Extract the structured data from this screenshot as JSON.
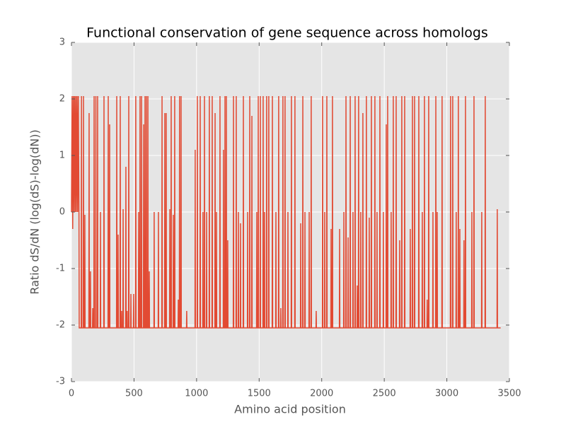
{
  "chart_data": {
    "type": "line",
    "title": "Functional conservation of gene sequence across homologs",
    "xlabel": "Amino acid position",
    "ylabel": "Ratio dS/dN (log(dS)-log(dN))",
    "xlim": [
      0,
      3500
    ],
    "xticks": [
      0,
      500,
      1000,
      1500,
      2000,
      2500,
      3000,
      3500
    ],
    "ylim": [
      -3,
      3
    ],
    "yticks": [
      -3,
      -2,
      -1,
      0,
      1,
      2,
      3
    ],
    "grid": true,
    "x": [
      0,
      5,
      10,
      15,
      20,
      25,
      30,
      35,
      40,
      45,
      50,
      55,
      60,
      62,
      78,
      80,
      82,
      94,
      96,
      98,
      105,
      107,
      109,
      139,
      141,
      143,
      150,
      152,
      154,
      168,
      170,
      172,
      179,
      181,
      183,
      193,
      195,
      197,
      207,
      209,
      211,
      230,
      232,
      234,
      258,
      260,
      262,
      292,
      294,
      296,
      303,
      305,
      307,
      360,
      362,
      364,
      371,
      373,
      375,
      388,
      390,
      392,
      399,
      401,
      403,
      411,
      413,
      415,
      433,
      435,
      437,
      443,
      445,
      447,
      456,
      458,
      460,
      473,
      475,
      477,
      495,
      497,
      499,
      512,
      514,
      516,
      535,
      537,
      539,
      546,
      548,
      550,
      558,
      560,
      562,
      575,
      577,
      579,
      586,
      588,
      590,
      597,
      599,
      601,
      609,
      611,
      613,
      620,
      622,
      624,
      659,
      661,
      663,
      693,
      695,
      697,
      722,
      724,
      726,
      744,
      746,
      748,
      755,
      757,
      759,
      784,
      786,
      788,
      795,
      797,
      799,
      812,
      814,
      816,
      823,
      825,
      827,
      852,
      854,
      856,
      862,
      864,
      866,
      874,
      876,
      878,
      919,
      921,
      923,
      987,
      989,
      991,
      1004,
      1006,
      1008,
      1027,
      1029,
      1031,
      1049,
      1051,
      1053,
      1061,
      1063,
      1065,
      1078,
      1080,
      1082,
      1100,
      1102,
      1104,
      1123,
      1125,
      1127,
      1146,
      1148,
      1150,
      1157,
      1159,
      1161,
      1185,
      1187,
      1189,
      1213,
      1215,
      1217,
      1225,
      1227,
      1229,
      1236,
      1238,
      1240,
      1247,
      1249,
      1251,
      1293,
      1295,
      1297,
      1315,
      1317,
      1319,
      1332,
      1334,
      1336,
      1349,
      1351,
      1353,
      1372,
      1374,
      1376,
      1406,
      1408,
      1410,
      1423,
      1425,
      1427,
      1440,
      1442,
      1444,
      1479,
      1481,
      1483,
      1491,
      1493,
      1495,
      1507,
      1509,
      1511,
      1530,
      1532,
      1534,
      1541,
      1543,
      1545,
      1558,
      1560,
      1562,
      1575,
      1577,
      1579,
      1604,
      1606,
      1608,
      1632,
      1634,
      1636,
      1654,
      1656,
      1658,
      1671,
      1673,
      1675,
      1688,
      1690,
      1692,
      1705,
      1707,
      1709,
      1728,
      1730,
      1732,
      1756,
      1758,
      1760,
      1784,
      1786,
      1788,
      1830,
      1832,
      1834,
      1847,
      1849,
      1851,
      1864,
      1866,
      1868,
      1898,
      1900,
      1902,
      1914,
      1916,
      1918,
      1954,
      1956,
      1958,
      2005,
      2007,
      2009,
      2022,
      2024,
      2026,
      2039,
      2041,
      2043,
      2073,
      2075,
      2077,
      2084,
      2086,
      2088,
      2141,
      2143,
      2145,
      2175,
      2177,
      2179,
      2192,
      2194,
      2196,
      2209,
      2211,
      2213,
      2226,
      2228,
      2230,
      2248,
      2250,
      2252,
      2265,
      2267,
      2269,
      2282,
      2284,
      2286,
      2293,
      2295,
      2297,
      2310,
      2312,
      2314,
      2327,
      2329,
      2331,
      2355,
      2357,
      2359,
      2378,
      2380,
      2382,
      2395,
      2397,
      2399,
      2423,
      2425,
      2427,
      2440,
      2442,
      2444,
      2463,
      2465,
      2467,
      2491,
      2493,
      2495,
      2514,
      2516,
      2518,
      2525,
      2527,
      2529,
      2553,
      2555,
      2557,
      2570,
      2572,
      2574,
      2593,
      2595,
      2597,
      2621,
      2623,
      2625,
      2638,
      2640,
      2642,
      2661,
      2663,
      2665,
      2706,
      2708,
      2710,
      2723,
      2725,
      2727,
      2740,
      2742,
      2744,
      2774,
      2776,
      2778,
      2802,
      2804,
      2806,
      2819,
      2821,
      2823,
      2841,
      2843,
      2845,
      2853,
      2855,
      2857,
      2887,
      2889,
      2891,
      2910,
      2912,
      2914,
      2921,
      2923,
      2925,
      2960,
      2962,
      2964,
      3028,
      3030,
      3032,
      3045,
      3047,
      3049,
      3073,
      3075,
      3077,
      3090,
      3092,
      3094,
      3102,
      3104,
      3106,
      3135,
      3137,
      3139,
      3147,
      3149,
      3151,
      3198,
      3200,
      3202,
      3215,
      3217,
      3219,
      3277,
      3279,
      3281,
      3305,
      3307,
      3309,
      3401,
      3403,
      3405,
      3430
    ],
    "series": [
      {
        "color": "#e24a33",
        "values": [
          0,
          2.05,
          -0.3,
          2.05,
          0,
          2.05,
          0,
          2.05,
          0,
          2.05,
          0,
          2.05,
          0,
          -2.05,
          -2.05,
          2.05,
          -2.05,
          -2.05,
          2.05,
          -2.05,
          -2.05,
          -0.05,
          -2.05,
          -2.05,
          1.75,
          -2.05,
          -2.05,
          -1.05,
          -2.05,
          -2.05,
          -1.7,
          -2.05,
          -2.05,
          2.05,
          -2.05,
          -2.05,
          2.05,
          -2.05,
          -2.05,
          2.05,
          -2.05,
          -2.05,
          0,
          -2.05,
          -2.05,
          2.05,
          -2.05,
          -2.05,
          2.05,
          -2.05,
          -2.05,
          1.55,
          -2.05,
          -2.05,
          2.05,
          -2.05,
          -2.05,
          -0.4,
          -2.05,
          -2.05,
          2.05,
          -2.05,
          -2.05,
          -1.75,
          -2.05,
          -2.05,
          0.05,
          -2.05,
          -2.05,
          0.8,
          -2.05,
          -2.05,
          -1.75,
          -2.05,
          -2.05,
          2.05,
          -2.05,
          -2.05,
          -1.45,
          -2.05,
          -2.05,
          -1.45,
          -2.05,
          -2.05,
          2.05,
          -2.05,
          -2.05,
          0,
          -2.05,
          -2.05,
          2.05,
          -2.05,
          -2.05,
          2.05,
          -2.05,
          -2.05,
          1.55,
          -2.05,
          -2.05,
          2.05,
          -2.05,
          -2.05,
          2.05,
          -2.05,
          -2.05,
          2.05,
          -2.05,
          -2.05,
          -1.05,
          -2.05,
          -2.05,
          0,
          -2.05,
          -2.05,
          0,
          -2.05,
          -2.05,
          2.05,
          -2.05,
          -2.05,
          1.75,
          -2.05,
          -2.05,
          1.75,
          -2.05,
          -2.05,
          0.05,
          -2.05,
          -2.05,
          2.05,
          -2.05,
          -2.05,
          -0.05,
          -2.05,
          -2.05,
          2.05,
          -2.05,
          -2.05,
          -1.55,
          -2.05,
          -2.05,
          2.05,
          -2.05,
          -2.05,
          2.05,
          -2.05,
          -2.05,
          -1.75,
          -2.05,
          -2.05,
          1.1,
          -2.05,
          -2.05,
          2.05,
          -2.05,
          -2.05,
          2.05,
          -2.05,
          -2.05,
          0,
          -2.05,
          -2.05,
          2.05,
          -2.05,
          -2.05,
          0,
          -2.05,
          -2.05,
          2.05,
          -2.05,
          -2.05,
          2.05,
          -2.05,
          -2.05,
          1.75,
          -2.05,
          -2.05,
          0,
          -2.05,
          -2.05,
          2.05,
          -2.05,
          -2.05,
          1.1,
          -2.05,
          -2.05,
          2.05,
          -2.05,
          -2.05,
          2.05,
          -2.05,
          -2.05,
          -0.5,
          -2.05,
          -2.05,
          2.05,
          -2.05,
          -2.05,
          2.05,
          -2.05,
          -2.05,
          0,
          -2.05,
          -2.05,
          -0.2,
          -2.05,
          -2.05,
          2.05,
          -2.05,
          -2.05,
          0,
          -2.05,
          -2.05,
          2.05,
          -2.05,
          -2.05,
          1.7,
          -2.05,
          -2.05,
          0,
          -2.05,
          -2.05,
          2.05,
          -2.05,
          -2.05,
          2.05,
          -2.05,
          -2.05,
          2.05,
          -2.05,
          -2.05,
          0,
          -2.05,
          -2.05,
          2.05,
          -2.05,
          -2.05,
          2.05,
          -2.05,
          -2.05,
          2.05,
          -2.05,
          -2.05,
          0,
          -2.05,
          -2.05,
          2.05,
          -2.05,
          -2.05,
          -1.7,
          -2.05,
          -2.05,
          2.05,
          -2.05,
          -2.05,
          2.05,
          -2.05,
          -2.05,
          0,
          -2.05,
          -2.05,
          2.05,
          -2.05,
          -2.05,
          2.05,
          -2.05,
          -2.05,
          -0.2,
          -2.05,
          -2.05,
          2.05,
          -2.05,
          -2.05,
          0,
          -2.05,
          -2.05,
          0,
          -2.05,
          -2.05,
          2.05,
          -2.05,
          -2.05,
          -1.75,
          -2.05,
          -2.05,
          2.05,
          -2.05,
          -2.05,
          0,
          -2.05,
          -2.05,
          2.05,
          -2.05,
          -2.05,
          -0.3,
          -2.05,
          -2.05,
          2.05,
          -2.05,
          -2.05,
          -0.3,
          -2.05,
          -2.05,
          0,
          -2.05,
          -2.05,
          2.05,
          -2.05,
          -2.05,
          -0.45,
          -2.05,
          -2.05,
          2.05,
          -2.05,
          -2.05,
          0,
          -2.05,
          -2.05,
          2.05,
          -2.05,
          -2.05,
          -1.3,
          -2.05,
          -2.05,
          2.05,
          -2.05,
          -2.05,
          0,
          -2.05,
          -2.05,
          1.75,
          -2.05,
          -2.05,
          2.05,
          -2.05,
          -2.05,
          -0.1,
          -2.05,
          -2.05,
          2.05,
          -2.05,
          -2.05,
          2.05,
          -2.05,
          -2.05,
          0,
          -2.05,
          -2.05,
          2.05,
          -2.05,
          -2.05,
          0,
          -2.05,
          -2.05,
          1.55,
          -2.05,
          -2.05,
          2.05,
          -2.05,
          -2.05,
          0,
          -2.05,
          -2.05,
          2.05,
          -2.05,
          -2.05,
          2.05,
          -2.05,
          -2.05,
          -0.5,
          -2.05,
          -2.05,
          2.05,
          -2.05,
          -2.05,
          2.05,
          -2.05,
          -2.05,
          -0.3,
          -2.05,
          -2.05,
          2.05,
          -2.05,
          -2.05,
          2.05,
          -2.05,
          -2.05,
          2.05,
          -2.05,
          -2.05,
          0,
          -2.05,
          -2.05,
          2.05,
          -2.05,
          -2.05,
          -1.55,
          -2.05,
          -2.05,
          2.05,
          -2.05,
          -2.05,
          0,
          -2.05,
          -2.05,
          2.05,
          -2.05,
          -2.05,
          0,
          -2.05,
          -2.05,
          2.05,
          -2.05,
          -2.05,
          2.05,
          -2.05,
          -2.05,
          2.05,
          -2.05,
          -2.05,
          0,
          -2.05,
          -2.05,
          2.05,
          -2.05,
          -2.05,
          -0.3,
          -2.05,
          -2.05,
          -0.5,
          -2.05,
          -2.05,
          2.05,
          -2.05,
          -2.05,
          0,
          -2.05,
          -2.05,
          2.05,
          -2.05,
          -2.05,
          0,
          -2.05,
          -2.05,
          2.05,
          -2.05,
          -2.05,
          0.05,
          -2.05,
          -2.05
        ]
      }
    ]
  }
}
